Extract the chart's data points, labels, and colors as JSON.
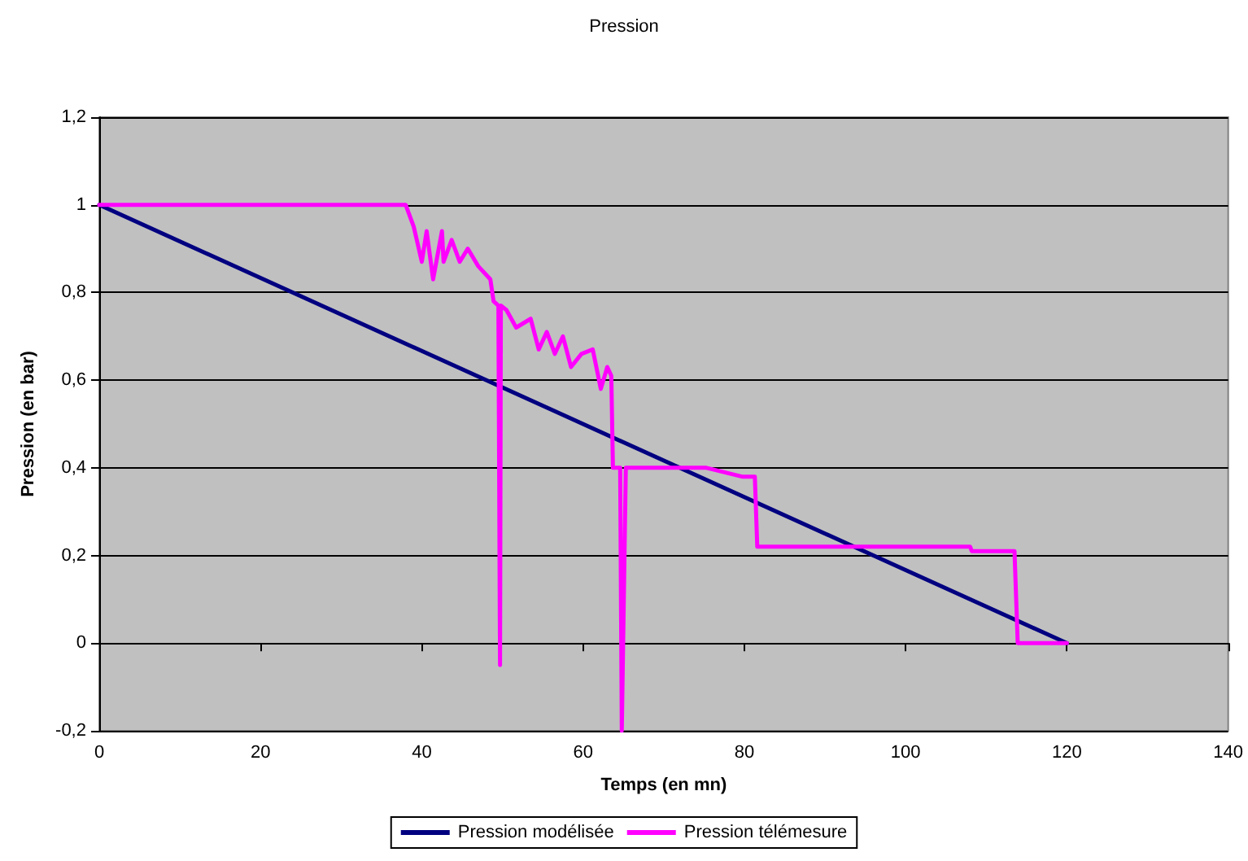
{
  "chart_data": {
    "type": "line",
    "title": "Pression",
    "xlabel": "Temps (en mn)",
    "ylabel": "Pression (en bar)",
    "xlim": [
      0,
      140
    ],
    "xticks": [
      0,
      20,
      40,
      60,
      80,
      100,
      120,
      140
    ],
    "ylim": [
      -0.2,
      1.2
    ],
    "yticks": [
      {
        "value": -0.2,
        "label": "-0,2"
      },
      0,
      {
        "value": 0.2,
        "label": "0,2"
      },
      {
        "value": 0.4,
        "label": "0,4"
      },
      {
        "value": 0.6,
        "label": "0,6"
      },
      {
        "value": 0.8,
        "label": "0,8"
      },
      1,
      {
        "value": 1.2,
        "label": "1,2"
      }
    ],
    "grid": "y",
    "legend": "bottom",
    "marker": "none",
    "line_style": "solid",
    "series": [
      {
        "name": "Pression modélisée",
        "color": "#000080",
        "x": [
          0,
          120
        ],
        "values": [
          1,
          0
        ]
      },
      {
        "name": "Pression télémesure",
        "color": "#ff00ff",
        "x": [
          0,
          38,
          39,
          40,
          40.6,
          41.4,
          42.5,
          42.7,
          43.7,
          44.7,
          45.7,
          47,
          48.5,
          48.9,
          49.5,
          49.7,
          49.8,
          50.5,
          51.7,
          53.5,
          54.5,
          55.5,
          56.5,
          57.5,
          58.5,
          59.8,
          61.2,
          62.2,
          63,
          63.5,
          63.7,
          64.6,
          64.8,
          64.9,
          65.3,
          75.3,
          79.7,
          81.3,
          81.6,
          108,
          108.2,
          113.5,
          113.9,
          120
        ],
        "values": [
          1,
          1,
          0.95,
          0.87,
          0.94,
          0.83,
          0.94,
          0.87,
          0.92,
          0.87,
          0.9,
          0.86,
          0.83,
          0.78,
          0.77,
          -0.05,
          0.77,
          0.76,
          0.72,
          0.74,
          0.67,
          0.71,
          0.66,
          0.7,
          0.63,
          0.66,
          0.67,
          0.58,
          0.63,
          0.61,
          0.4,
          0.4,
          -0.2,
          -0.2,
          0.4,
          0.4,
          0.38,
          0.38,
          0.22,
          0.22,
          0.21,
          0.21,
          0,
          0
        ]
      }
    ]
  }
}
